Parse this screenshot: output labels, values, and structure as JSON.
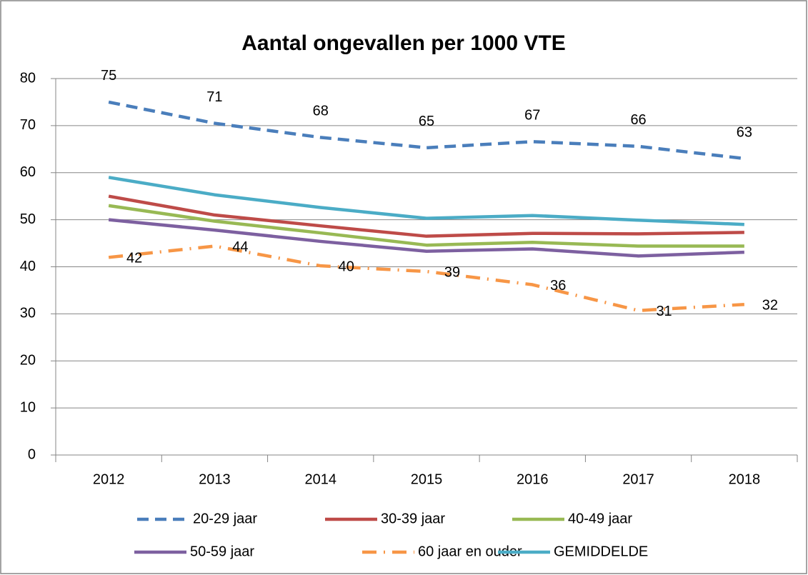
{
  "chart_data": {
    "type": "line",
    "title": "Aantal ongevallen per 1000 VTE",
    "categories": [
      "2012",
      "2013",
      "2014",
      "2015",
      "2016",
      "2017",
      "2018"
    ],
    "ylim": [
      0,
      80
    ],
    "yticks": [
      0,
      10,
      20,
      30,
      40,
      50,
      60,
      70,
      80
    ],
    "grid": true,
    "legend": "bottom",
    "series": [
      {
        "name": "20-29 jaar",
        "color": "#4a7ebb",
        "dash": "dashed",
        "values": [
          75,
          70.5,
          67.5,
          65.3,
          66.6,
          65.6,
          63
        ],
        "value_labels": [
          "75",
          "71",
          "68",
          "65",
          "67",
          "66",
          "63"
        ]
      },
      {
        "name": "30-39 jaar",
        "color": "#be4b48",
        "dash": "solid",
        "values": [
          55,
          51,
          48.7,
          46.5,
          47.1,
          47,
          47.3
        ]
      },
      {
        "name": "40-49 jaar",
        "color": "#98b954",
        "dash": "solid",
        "values": [
          53,
          49.7,
          47.2,
          44.6,
          45.2,
          44.4,
          44.4
        ]
      },
      {
        "name": "50-59 jaar",
        "color": "#7d60a0",
        "dash": "solid",
        "values": [
          50,
          47.8,
          45.4,
          43.3,
          43.8,
          42.3,
          43.1
        ]
      },
      {
        "name": "60 jaar en ouder",
        "color": "#f79646",
        "dash": "dash-dot",
        "values": [
          42,
          44.4,
          40.2,
          39,
          36.2,
          30.7,
          32
        ],
        "value_labels": [
          "42",
          "44",
          "40",
          "39",
          "36",
          "31",
          "32"
        ]
      },
      {
        "name": "GEMIDDELDE",
        "color": "#4bacc6",
        "dash": "solid",
        "values": [
          59,
          55.3,
          52.6,
          50.3,
          50.9,
          49.9,
          49
        ]
      }
    ]
  }
}
